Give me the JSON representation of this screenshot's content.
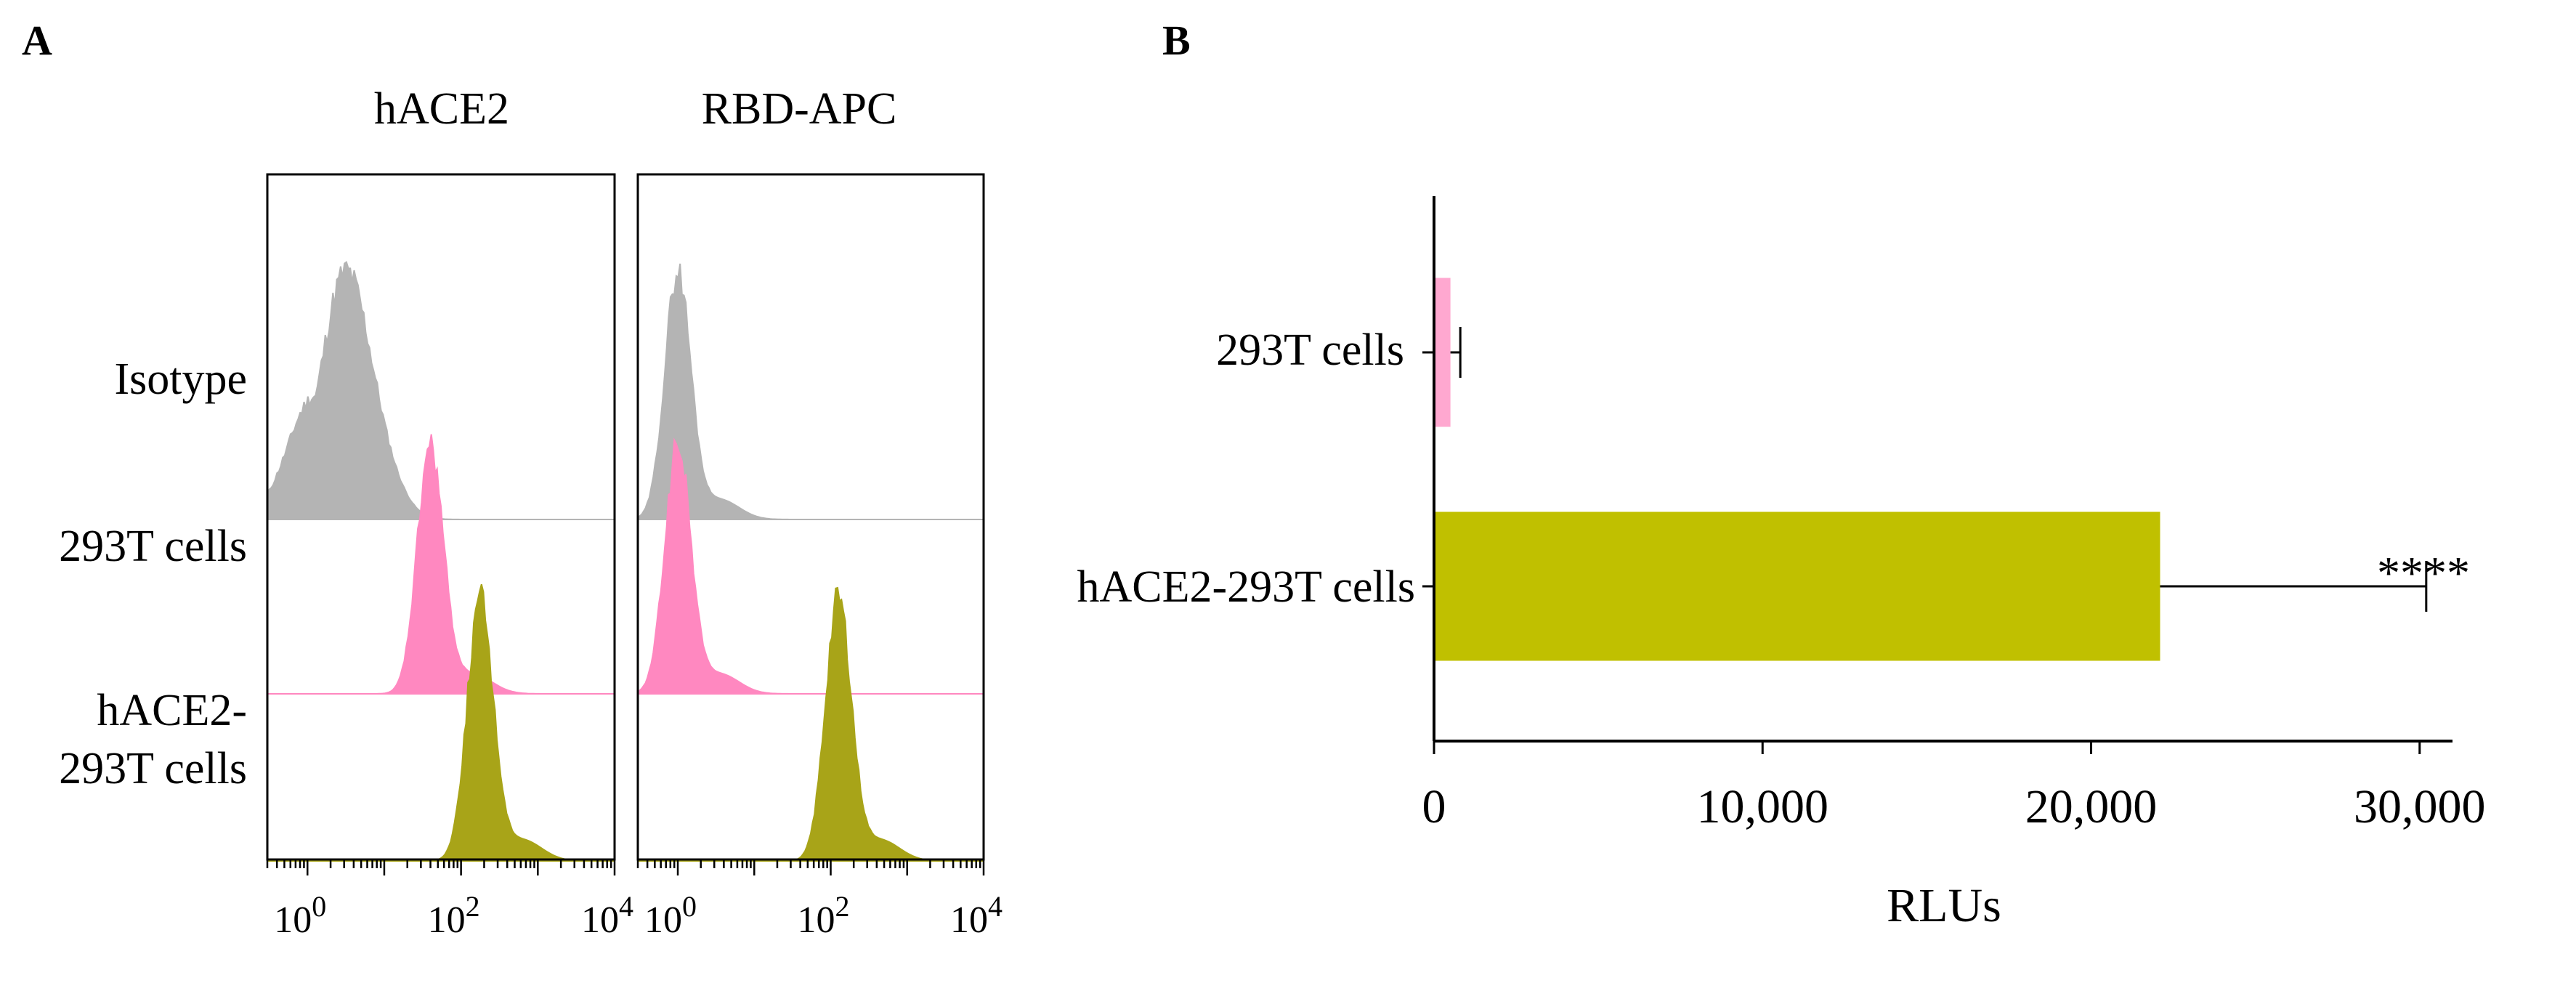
{
  "panel_a": {
    "letter": "A",
    "row_labels": [
      "Isotype",
      "293T cells",
      "hACE2-",
      "293T cells"
    ],
    "x_tick_base": "10",
    "x_tick_exponents": [
      "0",
      "2",
      "4"
    ]
  },
  "panel_b": {
    "letter": "B"
  },
  "colors": {
    "isotype": "#b4b4b4",
    "cells_293t": "#ff88c0",
    "hace2_293t": "#a8a418",
    "bar_hace2": "#c0c000",
    "bar_293t": "#ffa8d0"
  },
  "chart_data": [
    {
      "type": "histogram",
      "title": "hACE2",
      "x_scale": "log10",
      "xlim": [
        0.3,
        10000
      ],
      "series": [
        {
          "name": "Isotype",
          "color": "#b4b4b4",
          "peak_log10": 0.5,
          "peak_height": 1.0
        },
        {
          "name": "293T cells",
          "color": "#ff88c0",
          "peak_log10": 1.6,
          "peak_height": 1.0
        },
        {
          "name": "hACE2-293T cells",
          "color": "#a8a418",
          "peak_log10": 2.25,
          "peak_height": 1.0
        }
      ]
    },
    {
      "type": "histogram",
      "title": "RBD-APC",
      "x_scale": "log10",
      "xlim": [
        0.3,
        10000
      ],
      "series": [
        {
          "name": "Isotype",
          "color": "#b4b4b4",
          "peak_log10": 0.0,
          "peak_height": 1.0
        },
        {
          "name": "293T cells",
          "color": "#ff88c0",
          "peak_log10": 0.0,
          "peak_height": 1.0
        },
        {
          "name": "hACE2-293T cells",
          "color": "#a8a418",
          "peak_log10": 2.1,
          "peak_height": 1.0
        }
      ]
    },
    {
      "type": "bar",
      "orientation": "horizontal",
      "categories": [
        "293T cells",
        "hACE2-293T cells"
      ],
      "values": [
        500,
        22100
      ],
      "errors": [
        300,
        8100
      ],
      "colors": [
        "#ffa8d0",
        "#c0c000"
      ],
      "xlabel": "RLUs",
      "xlim": [
        0,
        31000
      ],
      "xticks": [
        0,
        10000,
        20000,
        30000
      ],
      "xtick_labels": [
        "0",
        "10,000",
        "20,000",
        "30,000"
      ],
      "annotation": "****"
    }
  ]
}
